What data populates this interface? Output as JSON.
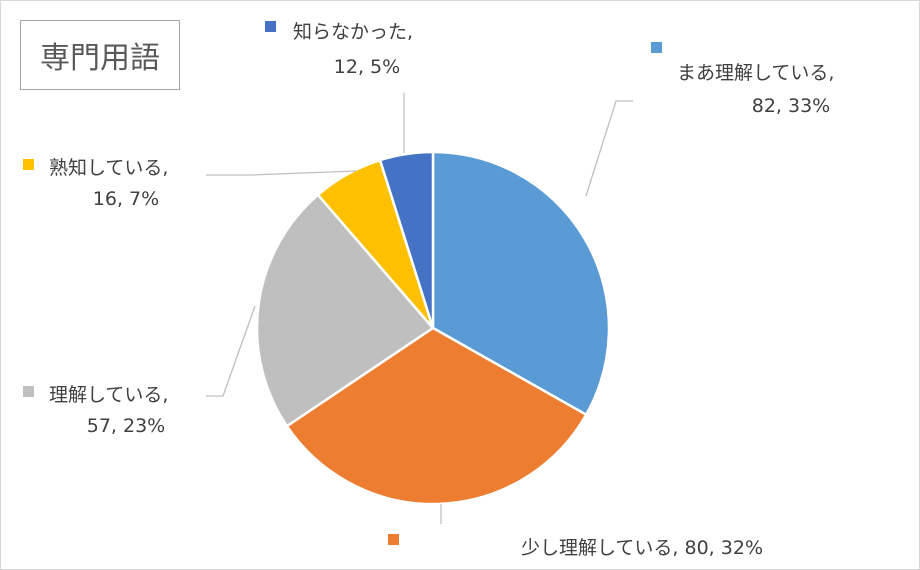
{
  "chart_data": {
    "type": "pie",
    "title": "専門用語",
    "slices": [
      {
        "name": "まあ理解している",
        "value": 82,
        "percent": "33%",
        "color": "#5b9bd5"
      },
      {
        "name": "少し理解している",
        "value": 80,
        "percent": "32%",
        "color": "#ed7d31"
      },
      {
        "name": "理解している",
        "value": 57,
        "percent": "23%",
        "color": "#bfbfbf"
      },
      {
        "name": "熟知している",
        "value": 16,
        "percent": "7%",
        "color": "#ffc000"
      },
      {
        "name": "知らなかった",
        "value": 12,
        "percent": "5%",
        "color": "#4472c4"
      }
    ],
    "start_angle_deg": 0,
    "direction": "clockwise",
    "data_labels": "category, value, percent",
    "legend": "none"
  }
}
